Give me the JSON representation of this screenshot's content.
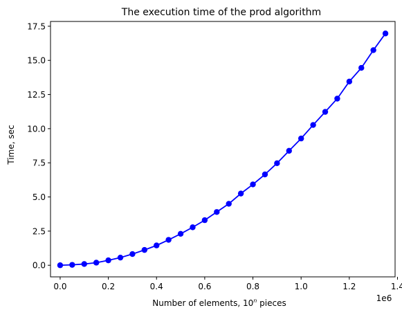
{
  "chart_data": {
    "type": "line",
    "title": "The execution time of the prod algorithm",
    "xlabel_prefix": "Number of elements, 10",
    "xlabel_sup": "n",
    "xlabel_suffix": " pieces",
    "ylabel": "Time, sec",
    "x_offset_label": "1e6",
    "x_scale": 1000000,
    "xlim": [
      -40000,
      1390000
    ],
    "ylim": [
      -0.85,
      17.85
    ],
    "x_ticks": [
      0,
      200000,
      400000,
      600000,
      800000,
      1000000,
      1200000,
      1400000
    ],
    "x_tick_labels": [
      "0.0",
      "0.2",
      "0.4",
      "0.6",
      "0.8",
      "1.0",
      "1.2",
      "1.4"
    ],
    "y_ticks": [
      0,
      2.5,
      5,
      7.5,
      10,
      12.5,
      15,
      17.5
    ],
    "y_tick_labels": [
      "0.0",
      "2.5",
      "5.0",
      "7.5",
      "10.0",
      "12.5",
      "15.0",
      "17.5"
    ],
    "grid": false,
    "series": [
      {
        "color": "#0000ff",
        "marker": "circle",
        "x": [
          0,
          50000,
          100000,
          150000,
          200000,
          250000,
          300000,
          350000,
          400000,
          450000,
          500000,
          550000,
          600000,
          650000,
          700000,
          750000,
          800000,
          850000,
          900000,
          950000,
          1000000,
          1050000,
          1100000,
          1150000,
          1200000,
          1250000,
          1300000,
          1350000
        ],
        "y": [
          0.0,
          0.03,
          0.09,
          0.19,
          0.36,
          0.56,
          0.82,
          1.12,
          1.45,
          1.86,
          2.3,
          2.78,
          3.3,
          3.9,
          4.5,
          5.25,
          5.92,
          6.65,
          7.47,
          8.38,
          9.28,
          10.27,
          11.23,
          12.2,
          13.45,
          14.45,
          15.75,
          16.97
        ]
      }
    ]
  }
}
